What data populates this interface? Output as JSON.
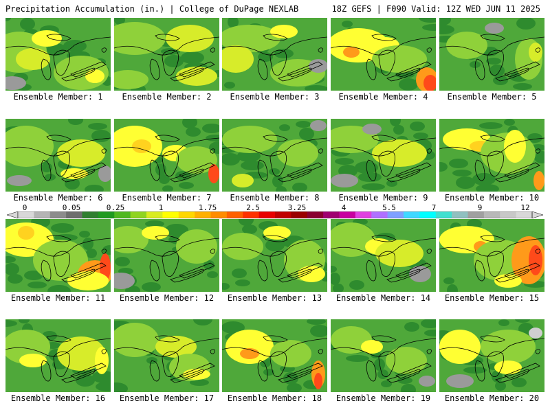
{
  "header": {
    "title": "Precipitation Accumulation (in.) | College of DuPage NEXLAB",
    "run_info": "18Z GEFS | F090 Valid: 12Z WED JUN 11 2025"
  },
  "members": [
    {
      "label": "Ensemble Member: 1"
    },
    {
      "label": "Ensemble Member: 2"
    },
    {
      "label": "Ensemble Member: 3"
    },
    {
      "label": "Ensemble Member: 4"
    },
    {
      "label": "Ensemble Member: 5"
    },
    {
      "label": "Ensemble Member: 6"
    },
    {
      "label": "Ensemble Member: 7"
    },
    {
      "label": "Ensemble Member: 8"
    },
    {
      "label": "Ensemble Member: 9"
    },
    {
      "label": "Ensemble Member: 10"
    },
    {
      "label": "Ensemble Member: 11"
    },
    {
      "label": "Ensemble Member: 12"
    },
    {
      "label": "Ensemble Member: 13"
    },
    {
      "label": "Ensemble Member: 14"
    },
    {
      "label": "Ensemble Member: 15"
    },
    {
      "label": "Ensemble Member: 16"
    },
    {
      "label": "Ensemble Member: 17"
    },
    {
      "label": "Ensemble Member: 18"
    },
    {
      "label": "Ensemble Member: 19"
    },
    {
      "label": "Ensemble Member: 20"
    }
  ],
  "colorbar": {
    "tick_labels": [
      "0",
      "0.05",
      "0.25",
      "1",
      "1.75",
      "2.5",
      "3.25",
      "4",
      "5.5",
      "7",
      "9",
      "12"
    ],
    "colors": [
      "#d8d8d8",
      "#b4b4b4",
      "#8c8c8c",
      "#6e6e6e",
      "#2f7f2f",
      "#1f9a1f",
      "#4fb81f",
      "#8fd41f",
      "#d8ec1f",
      "#ffff00",
      "#ffd700",
      "#ffb000",
      "#ff8c00",
      "#ff6000",
      "#ff3000",
      "#e80000",
      "#c00000",
      "#9a0000",
      "#8a0030",
      "#a00070",
      "#c800a0",
      "#e040e0",
      "#b070ff",
      "#7fa0ff",
      "#40d8ff",
      "#00ffff",
      "#40e0d0",
      "#90c0c0",
      "#a0a0a0",
      "#b8b8b8",
      "#c8c8c8",
      "#d8d8d8"
    ]
  },
  "map_colors": {
    "dark_green": "#2e8b2e",
    "green": "#4fa83a",
    "light_green": "#8fd13a",
    "yellow_green": "#d7ec2a",
    "yellow": "#ffff33",
    "gold": "#ffd21f",
    "orange": "#ff9a1a",
    "red": "#ff4a1a",
    "dark_red": "#e01010",
    "gray": "#9a9a9a",
    "light_gray": "#cfcfcf"
  }
}
